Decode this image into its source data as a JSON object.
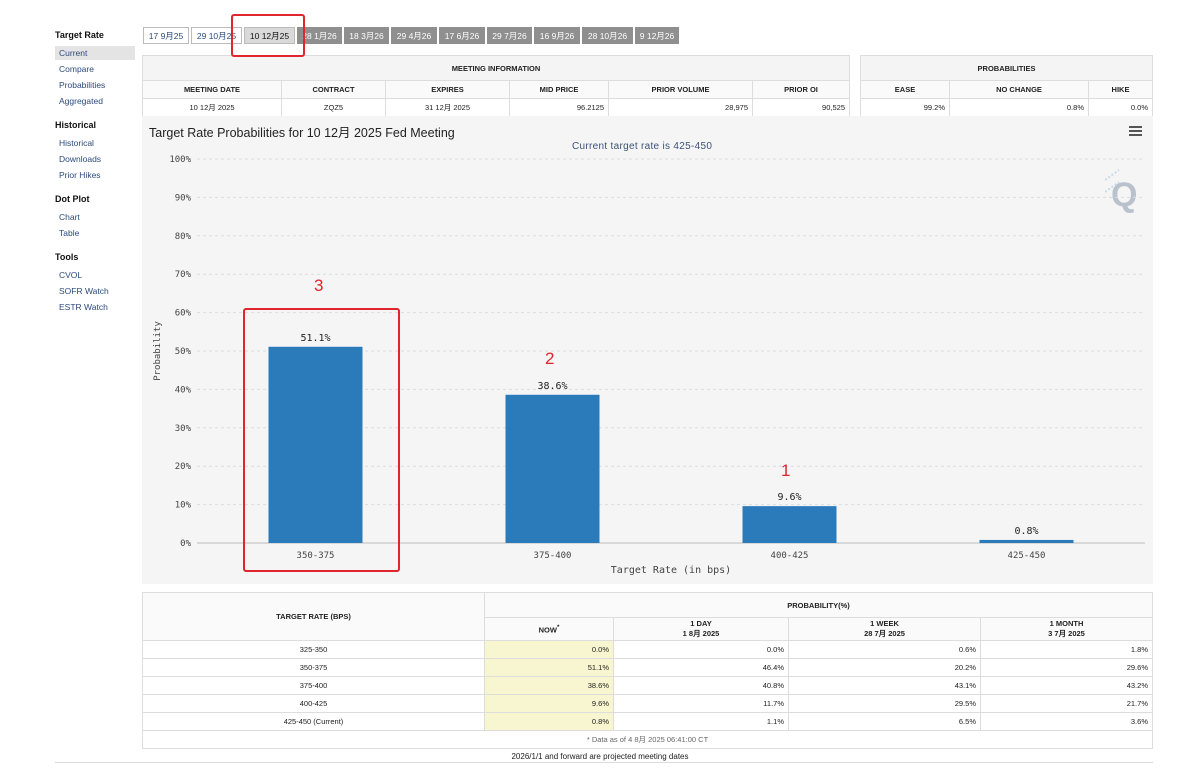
{
  "sidebar": [
    {
      "heading": "Target Rate",
      "items": [
        {
          "label": "Current",
          "active": true
        },
        {
          "label": "Compare"
        },
        {
          "label": "Probabilities"
        },
        {
          "label": "Aggregated"
        }
      ]
    },
    {
      "heading": "Historical",
      "items": [
        {
          "label": "Historical"
        },
        {
          "label": "Downloads"
        },
        {
          "label": "Prior Hikes"
        }
      ]
    },
    {
      "heading": "Dot Plot",
      "items": [
        {
          "label": "Chart"
        },
        {
          "label": "Table"
        }
      ]
    },
    {
      "heading": "Tools",
      "items": [
        {
          "label": "CVOL"
        },
        {
          "label": "SOFR Watch"
        },
        {
          "label": "ESTR Watch"
        }
      ]
    }
  ],
  "meeting_tabs": [
    {
      "label": "17 9月25",
      "style": "light"
    },
    {
      "label": "29 10月25",
      "style": "light"
    },
    {
      "label": "10 12月25",
      "style": "active"
    },
    {
      "label": "28 1月26",
      "style": "dark"
    },
    {
      "label": "18 3月26",
      "style": "dark"
    },
    {
      "label": "29 4月26",
      "style": "dark"
    },
    {
      "label": "17 6月26",
      "style": "dark"
    },
    {
      "label": "29 7月26",
      "style": "dark"
    },
    {
      "label": "16 9月26",
      "style": "dark"
    },
    {
      "label": "28 10月26",
      "style": "dark"
    },
    {
      "label": "9 12月26",
      "style": "dark"
    }
  ],
  "meeting_info": {
    "title": "MEETING INFORMATION",
    "headers": [
      "MEETING DATE",
      "CONTRACT",
      "EXPIRES",
      "MID PRICE",
      "PRIOR VOLUME",
      "PRIOR OI"
    ],
    "values": [
      "10 12月 2025",
      "ZQZ5",
      "31 12月 2025",
      "96.2125",
      "28,975",
      "90,525"
    ]
  },
  "probabilities": {
    "title": "PROBABILITIES",
    "headers": [
      "EASE",
      "NO CHANGE",
      "HIKE"
    ],
    "values": [
      "99.2%",
      "0.8%",
      "0.0%"
    ]
  },
  "chart_data": {
    "type": "bar",
    "title": "Target Rate Probabilities for 10 12月 2025 Fed Meeting",
    "subtitle": "Current target rate is 425-450",
    "xlabel": "Target Rate (in bps)",
    "ylabel": "Probability",
    "categories": [
      "350-375",
      "375-400",
      "400-425",
      "425-450"
    ],
    "values": [
      51.1,
      38.6,
      9.6,
      0.8
    ],
    "data_labels": [
      "51.1%",
      "38.6%",
      "9.6%",
      "0.8%"
    ],
    "ylim": [
      0,
      100
    ],
    "yticks": [
      "0%",
      "10%",
      "20%",
      "30%",
      "40%",
      "50%",
      "60%",
      "70%",
      "80%",
      "90%",
      "100%"
    ],
    "bar_color": "#2b7bba",
    "grid": true
  },
  "annotations": {
    "labels": [
      "3",
      "2",
      "1"
    ],
    "color": "#e0262c"
  },
  "prob_table": {
    "target_header": "TARGET RATE (BPS)",
    "prob_header": "PROBABILITY(%)",
    "columns": [
      {
        "label": "NOW",
        "marker": "*",
        "sub": ""
      },
      {
        "label": "1 DAY",
        "sub": "1 8月 2025"
      },
      {
        "label": "1 WEEK",
        "sub": "28 7月 2025"
      },
      {
        "label": "1 MONTH",
        "sub": "3 7月 2025"
      }
    ],
    "rows": [
      {
        "rate": "325-350",
        "values": [
          "0.0%",
          "0.0%",
          "0.6%",
          "1.8%"
        ]
      },
      {
        "rate": "350-375",
        "values": [
          "51.1%",
          "46.4%",
          "20.2%",
          "29.6%"
        ]
      },
      {
        "rate": "375-400",
        "values": [
          "38.6%",
          "40.8%",
          "43.1%",
          "43.2%"
        ]
      },
      {
        "rate": "400-425",
        "values": [
          "9.6%",
          "11.7%",
          "29.5%",
          "21.7%"
        ]
      },
      {
        "rate": "425-450 (Current)",
        "values": [
          "0.8%",
          "1.1%",
          "6.5%",
          "3.6%"
        ]
      }
    ],
    "footnote": "* Data as of 4 8月 2025 06:41:00 CT"
  },
  "bottom_note": "2026/1/1 and forward are projected meeting dates"
}
